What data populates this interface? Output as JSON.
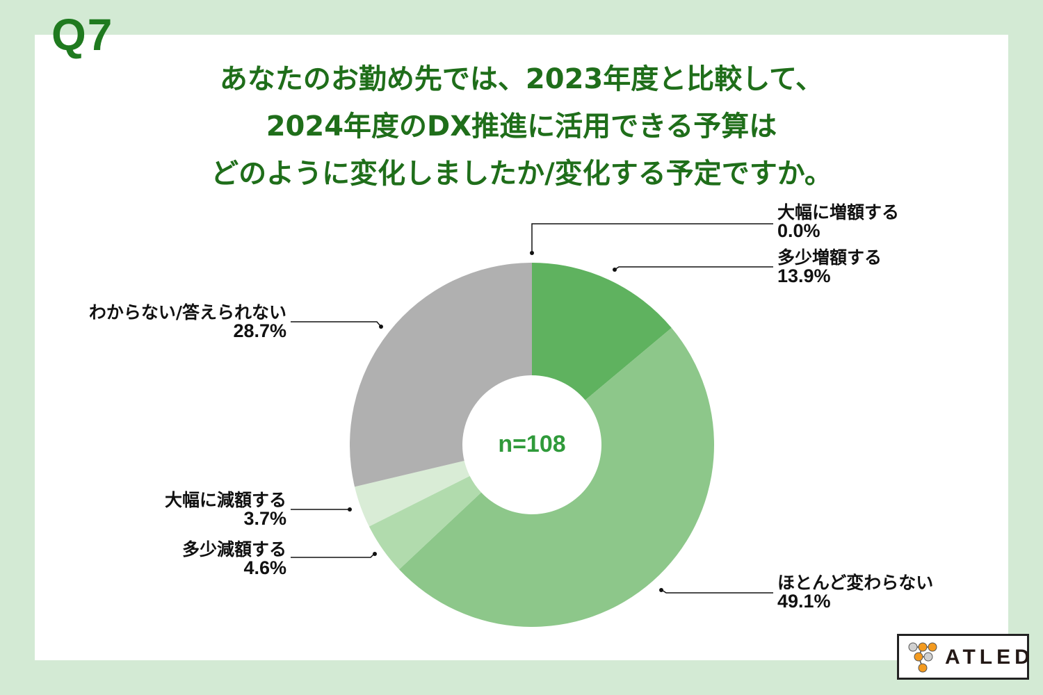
{
  "question_label": "Q7",
  "title_lines": [
    "あなたのお勤め先では、2023年度と比較して、",
    "2024年度のDX推進に活用できる予算は",
    "どのように変化しましたか/変化する予定ですか。"
  ],
  "center_label": "n=108",
  "logo": {
    "text": "ATLED",
    "name": "atled-logo"
  },
  "colors": {
    "background": "#d3ead4",
    "title": "#1f6e1a",
    "center_text": "#2f9a3a",
    "slice_increase_greatly": "#3f8f3f",
    "slice_increase_slightly": "#5fb25f",
    "slice_no_change": "#8dc78a",
    "slice_decrease_slightly": "#b1dbad",
    "slice_decrease_greatly": "#d9ecd6",
    "slice_unknown": "#b0b0b0"
  },
  "labels": {
    "increase_greatly": {
      "name": "大幅に増額する",
      "value": "0.0%"
    },
    "increase_slightly": {
      "name": "多少増額する",
      "value": "13.9%"
    },
    "no_change": {
      "name": "ほとんど変わらない",
      "value": "49.1%"
    },
    "decrease_slightly": {
      "name": "多少減額する",
      "value": "4.6%"
    },
    "decrease_greatly": {
      "name": "大幅に減額する",
      "value": "3.7%"
    },
    "unknown": {
      "name": "わからない/答えられない",
      "value": "28.7%"
    }
  },
  "chart_data": {
    "type": "pie",
    "style": "donut",
    "title": "あなたのお勤め先では、2023年度と比較して、2024年度のDX推進に活用できる予算はどのように変化しましたか/変化する予定ですか。",
    "center_annotation": "n=108",
    "sample_size": 108,
    "unit": "%",
    "start_angle": "12 o'clock",
    "direction": "clockwise",
    "categories": [
      "大幅に増額する",
      "多少増額する",
      "ほとんど変わらない",
      "多少減額する",
      "大幅に減額する",
      "わからない/答えられない"
    ],
    "values": [
      0.0,
      13.9,
      49.1,
      4.6,
      3.7,
      28.7
    ],
    "colors": [
      "#3f8f3f",
      "#5fb25f",
      "#8dc78a",
      "#b1dbad",
      "#d9ecd6",
      "#b0b0b0"
    ],
    "legend": "leader-line labels around chart"
  }
}
